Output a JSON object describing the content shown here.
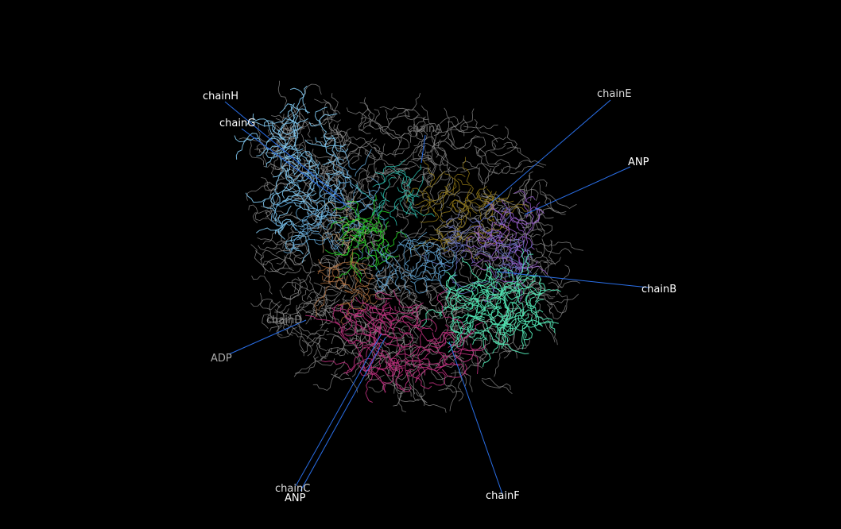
{
  "scene": {
    "background_color": "#000000",
    "leader_line_color": "#2a6fe8",
    "backbone_color": "#9a9a9a",
    "chain_colors": {
      "chainH": "#7fc8f0",
      "chainG": "#62a8d8",
      "chainE": "#9a7f18",
      "ANP_top": "#9b5fd0",
      "chainB": "#6f7bd0",
      "chainA": "#2ab8a8",
      "green": "#22c022",
      "chainF": "#50e0b0",
      "chainC": "#c0307f",
      "ADP": "#b07040",
      "tan": "#c8a880"
    }
  },
  "labels": [
    {
      "id": "chainH",
      "text": "chainH",
      "color": "#ffffff"
    },
    {
      "id": "chainG",
      "text": "chainG",
      "color": "#ffffff"
    },
    {
      "id": "chainA",
      "text": "chainA",
      "color": "#6a6a6a"
    },
    {
      "id": "chainE",
      "text": "chainE",
      "color": "#dcdcdc"
    },
    {
      "id": "anp_top",
      "text": "ANP",
      "color": "#ffffff"
    },
    {
      "id": "chainB",
      "text": "chainB",
      "color": "#ffffff"
    },
    {
      "id": "chainD",
      "text": "chainD",
      "color": "#8a8a8a"
    },
    {
      "id": "adp",
      "text": "ADP",
      "color": "#a8a8a8"
    },
    {
      "id": "chainC",
      "text": "chainC",
      "color": "#dcdcdc"
    },
    {
      "id": "anp_bottom",
      "text": "ANP",
      "color": "#ffffff"
    },
    {
      "id": "chainF",
      "text": "chainF",
      "color": "#ffffff"
    }
  ]
}
